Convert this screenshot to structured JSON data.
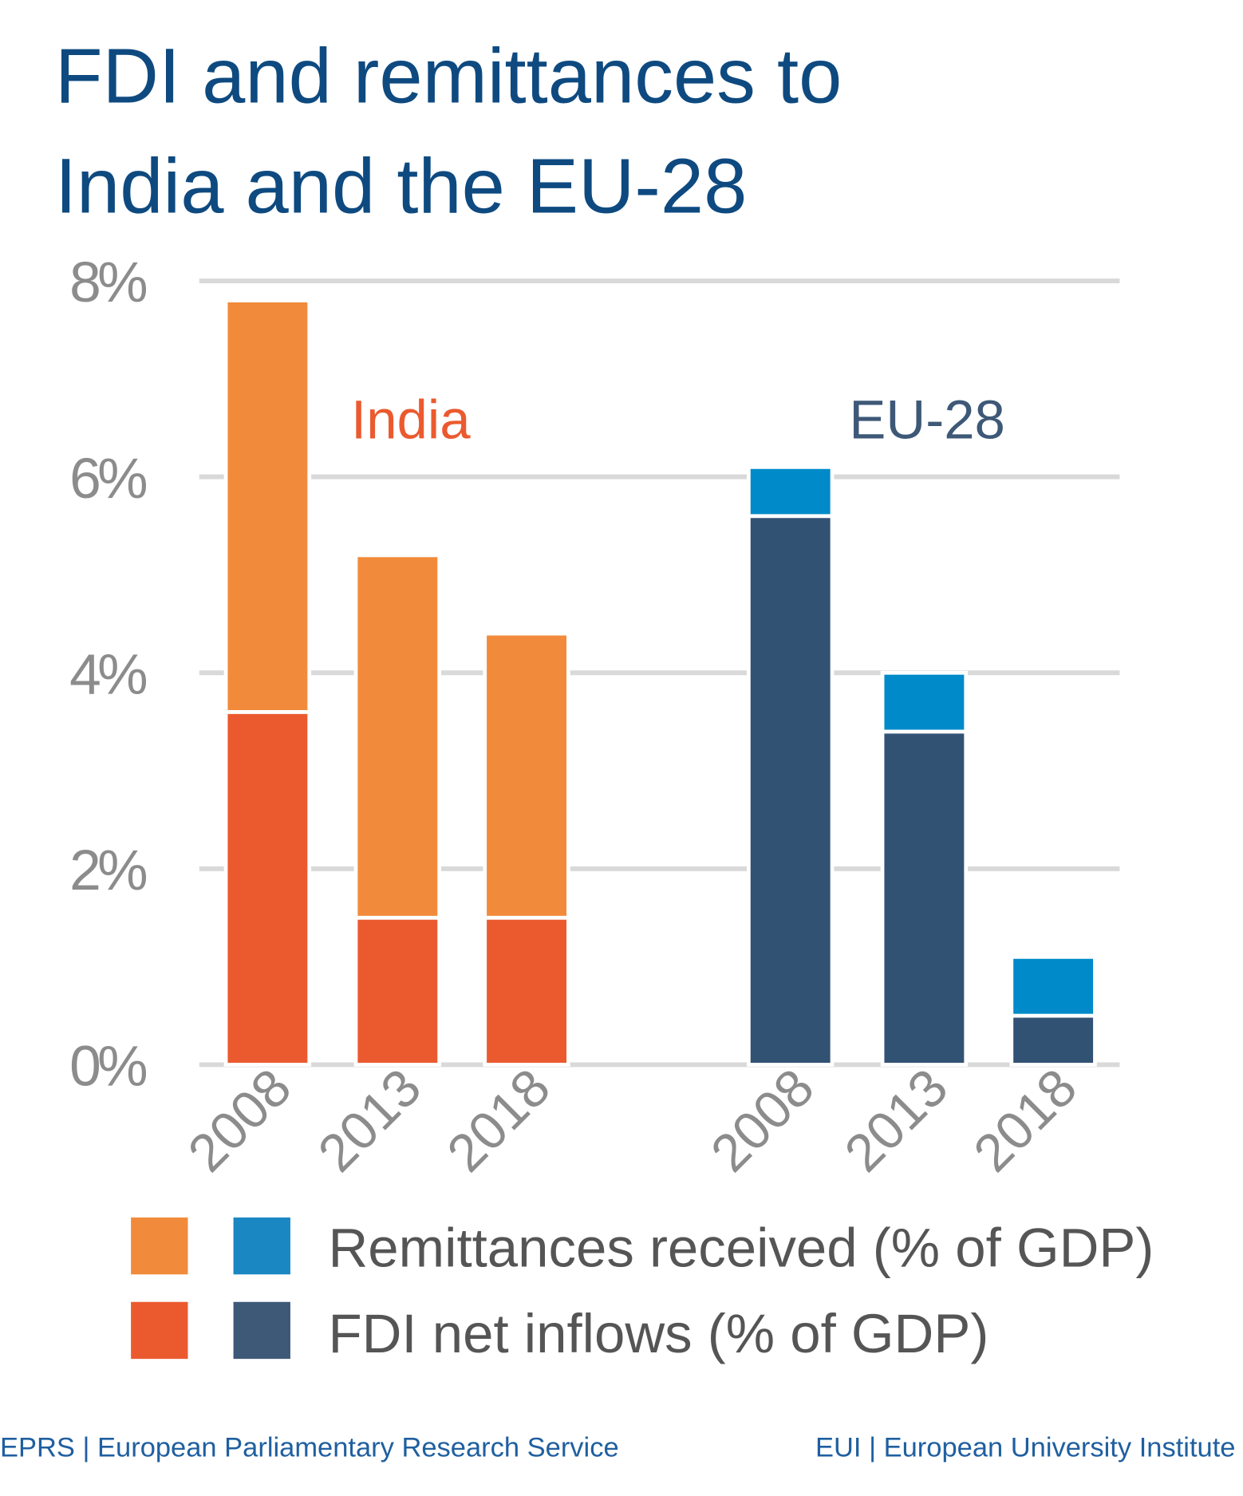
{
  "chart_data": {
    "type": "bar",
    "stacked": true,
    "title": "FDI and remittances to India and the EU-28",
    "title_lines": [
      "FDI and remittances to",
      "India and the EU-28"
    ],
    "ylim": [
      0,
      8
    ],
    "yticks": [
      0,
      2,
      4,
      6,
      8
    ],
    "ytick_labels": [
      "0%",
      "2%",
      "4%",
      "6%",
      "8%"
    ],
    "grid": true,
    "groups": [
      {
        "name": "India",
        "color_label": "#EB5A2F",
        "categories": [
          "2008",
          "2013",
          "2018"
        ],
        "series": [
          {
            "name": "FDI net inflows (% of GDP)",
            "color": "#EB5A2F",
            "values": [
              3.6,
              1.5,
              1.5
            ]
          },
          {
            "name": "Remittances received (% of GDP)",
            "color": "#F18B3B",
            "values": [
              4.2,
              3.7,
              2.9
            ]
          }
        ]
      },
      {
        "name": "EU-28",
        "color_label": "#3E5877",
        "categories": [
          "2008",
          "2013",
          "2018"
        ],
        "series": [
          {
            "name": "FDI net inflows (% of GDP)",
            "color": "#325274",
            "values": [
              5.6,
              3.4,
              0.5
            ]
          },
          {
            "name": "Remittances received (% of GDP)",
            "color": "#008AC9",
            "values": [
              0.5,
              0.6,
              0.6
            ]
          }
        ]
      }
    ],
    "legend": {
      "placement": "bottom",
      "entries": [
        {
          "label": "Remittances received (% of GDP)",
          "colors": [
            "#F18B3B",
            "#1A87C2"
          ]
        },
        {
          "label": "FDI net inflows (% of GDP)",
          "colors": [
            "#EB5A2F",
            "#3E5877"
          ]
        }
      ]
    }
  },
  "footer": {
    "left": "EPRS | European Parliamentary Research Service",
    "right": "EUI | European University Institute"
  },
  "colors": {
    "title": "#0E4A80",
    "axis_text": "#8C8C8C",
    "grid": "#D9D9D9",
    "legend_text": "#555555",
    "footer": "#1F5FA0"
  }
}
